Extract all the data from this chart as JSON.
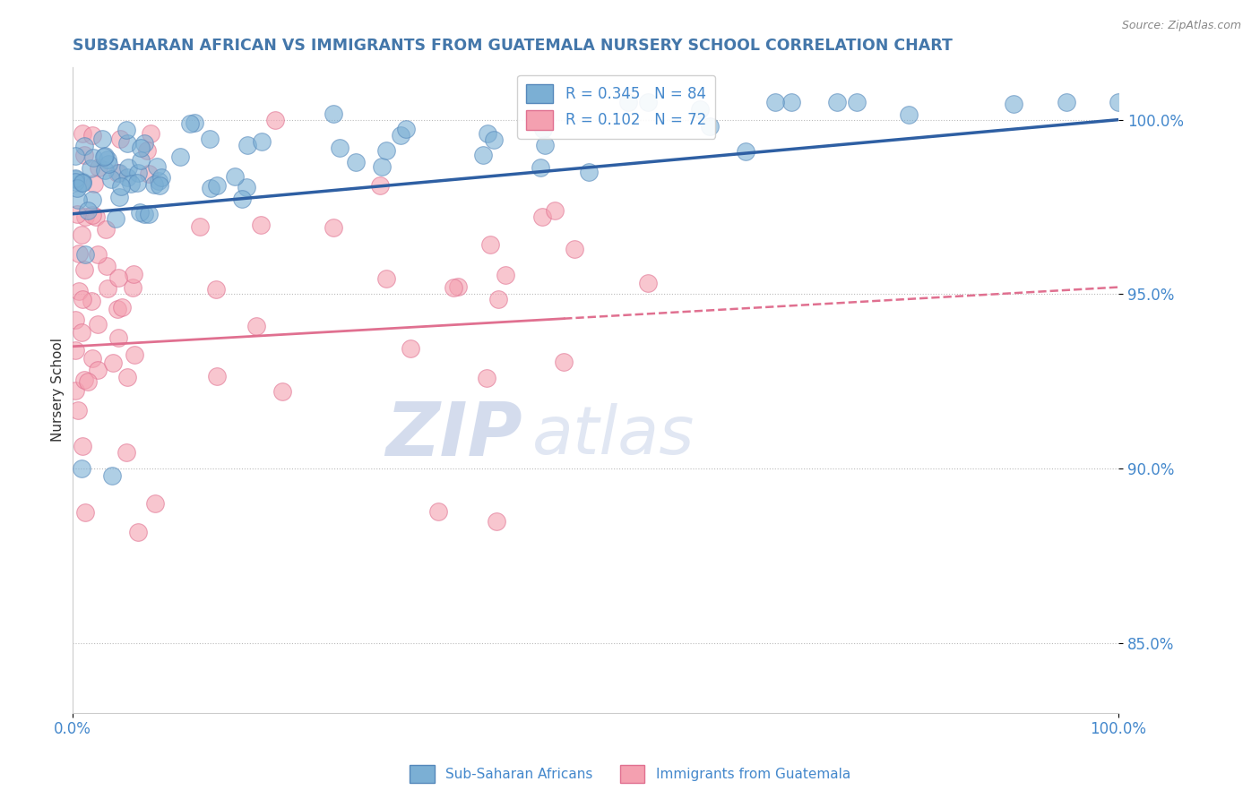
{
  "title": "SUBSAHARAN AFRICAN VS IMMIGRANTS FROM GUATEMALA NURSERY SCHOOL CORRELATION CHART",
  "source_text": "Source: ZipAtlas.com",
  "ylabel": "Nursery School",
  "watermark": "ZIPatlas",
  "blue_R": 0.345,
  "blue_N": 84,
  "pink_R": 0.102,
  "pink_N": 72,
  "blue_label": "Sub-Saharan Africans",
  "pink_label": "Immigrants from Guatemala",
  "xlim": [
    0,
    100
  ],
  "ylim": [
    83.0,
    101.5
  ],
  "yticks": [
    85.0,
    90.0,
    95.0,
    100.0
  ],
  "ytick_labels": [
    "85.0%",
    "90.0%",
    "95.0%",
    "100.0%"
  ],
  "blue_color": "#7BAFD4",
  "blue_edge_color": "#5588BB",
  "pink_color": "#F4A0B0",
  "pink_edge_color": "#E07090",
  "blue_line_color": "#2E5FA3",
  "pink_line_color": "#E07090",
  "title_color": "#4477AA",
  "axis_label_color": "#333333",
  "tick_color": "#4488CC",
  "grid_color": "#BBBBBB",
  "background_color": "#FFFFFF",
  "blue_line_x0": 0,
  "blue_line_y0": 97.3,
  "blue_line_x1": 100,
  "blue_line_y1": 100.0,
  "pink_line_x0": 0,
  "pink_line_y0": 93.5,
  "pink_line_x1": 100,
  "pink_line_y1": 95.2,
  "pink_solid_end": 47
}
